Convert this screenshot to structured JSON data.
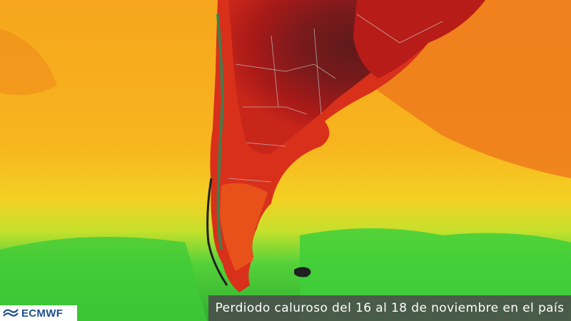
{
  "brand": {
    "logo_text": "ECMWF",
    "logo_icon": "ecmwf-swirl-icon",
    "logo_color": "#1f4f8f"
  },
  "caption": {
    "text": "Perdiodo caluroso del 16 al 18 de noviembre en el país"
  },
  "map": {
    "region": "South America — Argentina and Chile",
    "palette": {
      "hottest": "#5e1a1a",
      "very_hot": "#a01818",
      "hot": "#d8301a",
      "warm": "#ee6a1a",
      "mild": "#f6a51c",
      "cool": "#e8e62a",
      "cold": "#4fd23a",
      "coldest": "#27a02e"
    }
  }
}
